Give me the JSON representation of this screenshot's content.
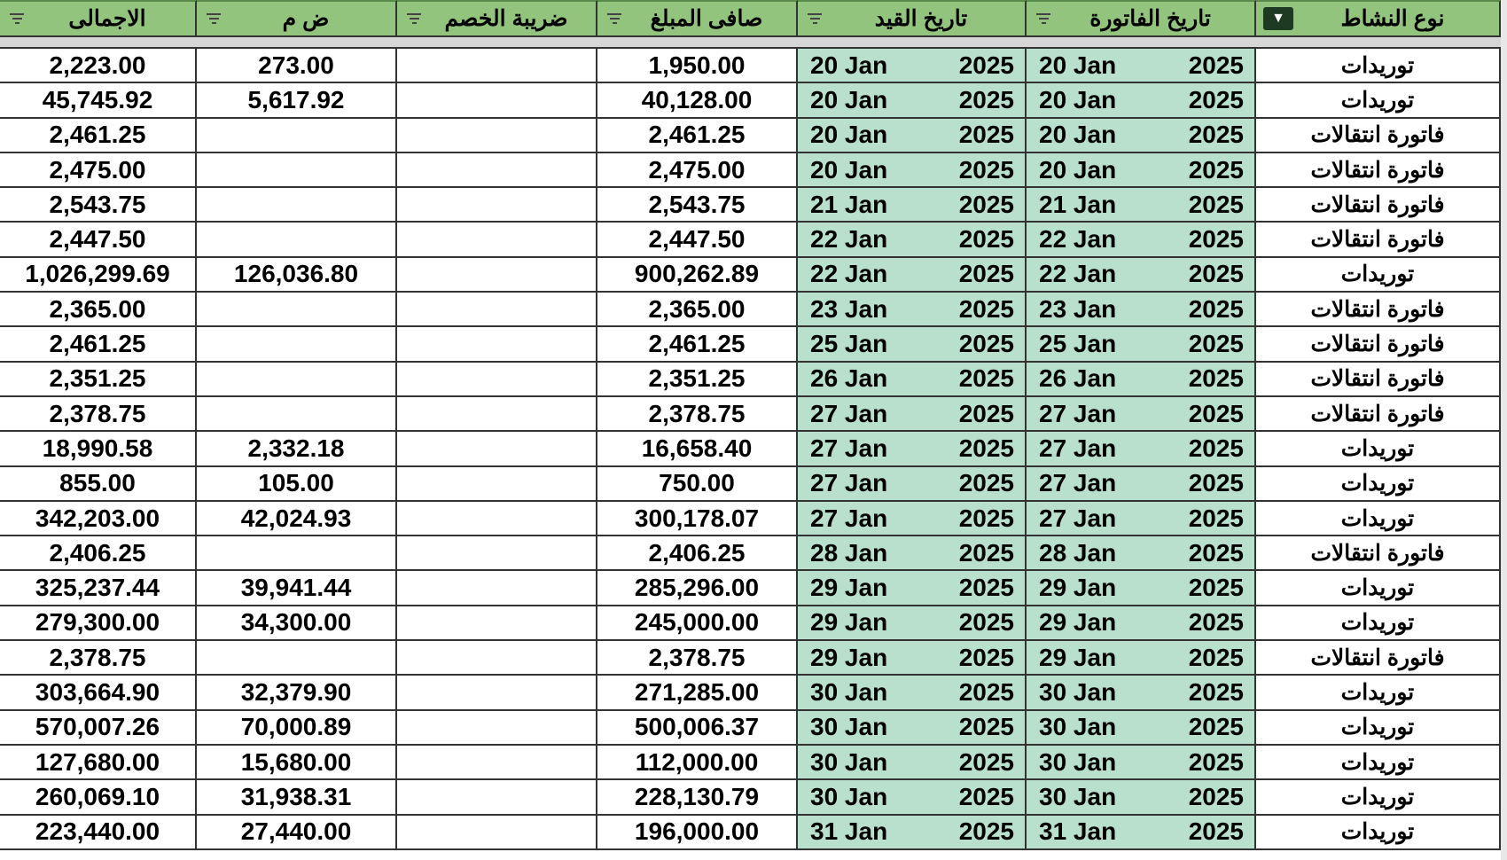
{
  "headers": [
    "الاجمالى",
    "ض م",
    "ضريبة الخصم",
    "صافى المبلغ",
    "تاريخ القيد",
    "تاريخ الفاتورة",
    "نوع النشاط"
  ],
  "colors": {
    "header_bg": "#93c47d",
    "date_bg": "#b8e0cc",
    "active_filter": "#1e3a22"
  },
  "rows": [
    {
      "total": "2,223.00",
      "vat": "273.00",
      "wht": "",
      "net": "1,950.00",
      "post_day": "20 Jan",
      "post_year": "2025",
      "inv_day": "20 Jan",
      "inv_year": "2025",
      "activity": "توريدات"
    },
    {
      "total": "45,745.92",
      "vat": "5,617.92",
      "wht": "",
      "net": "40,128.00",
      "post_day": "20 Jan",
      "post_year": "2025",
      "inv_day": "20 Jan",
      "inv_year": "2025",
      "activity": "توريدات"
    },
    {
      "total": "2,461.25",
      "vat": "",
      "wht": "",
      "net": "2,461.25",
      "post_day": "20 Jan",
      "post_year": "2025",
      "inv_day": "20 Jan",
      "inv_year": "2025",
      "activity": "فاتورة انتقالات"
    },
    {
      "total": "2,475.00",
      "vat": "",
      "wht": "",
      "net": "2,475.00",
      "post_day": "20 Jan",
      "post_year": "2025",
      "inv_day": "20 Jan",
      "inv_year": "2025",
      "activity": "فاتورة انتقالات"
    },
    {
      "total": "2,543.75",
      "vat": "",
      "wht": "",
      "net": "2,543.75",
      "post_day": "21 Jan",
      "post_year": "2025",
      "inv_day": "21 Jan",
      "inv_year": "2025",
      "activity": "فاتورة انتقالات"
    },
    {
      "total": "2,447.50",
      "vat": "",
      "wht": "",
      "net": "2,447.50",
      "post_day": "22 Jan",
      "post_year": "2025",
      "inv_day": "22 Jan",
      "inv_year": "2025",
      "activity": "فاتورة انتقالات"
    },
    {
      "total": "1,026,299.69",
      "vat": "126,036.80",
      "wht": "",
      "net": "900,262.89",
      "post_day": "22 Jan",
      "post_year": "2025",
      "inv_day": "22 Jan",
      "inv_year": "2025",
      "activity": "توريدات"
    },
    {
      "total": "2,365.00",
      "vat": "",
      "wht": "",
      "net": "2,365.00",
      "post_day": "23 Jan",
      "post_year": "2025",
      "inv_day": "23 Jan",
      "inv_year": "2025",
      "activity": "فاتورة انتقالات"
    },
    {
      "total": "2,461.25",
      "vat": "",
      "wht": "",
      "net": "2,461.25",
      "post_day": "25 Jan",
      "post_year": "2025",
      "inv_day": "25 Jan",
      "inv_year": "2025",
      "activity": "فاتورة انتقالات"
    },
    {
      "total": "2,351.25",
      "vat": "",
      "wht": "",
      "net": "2,351.25",
      "post_day": "26 Jan",
      "post_year": "2025",
      "inv_day": "26 Jan",
      "inv_year": "2025",
      "activity": "فاتورة انتقالات"
    },
    {
      "total": "2,378.75",
      "vat": "",
      "wht": "",
      "net": "2,378.75",
      "post_day": "27 Jan",
      "post_year": "2025",
      "inv_day": "27 Jan",
      "inv_year": "2025",
      "activity": "فاتورة انتقالات"
    },
    {
      "total": "18,990.58",
      "vat": "2,332.18",
      "wht": "",
      "net": "16,658.40",
      "post_day": "27 Jan",
      "post_year": "2025",
      "inv_day": "27 Jan",
      "inv_year": "2025",
      "activity": "توريدات"
    },
    {
      "total": "855.00",
      "vat": "105.00",
      "wht": "",
      "net": "750.00",
      "post_day": "27 Jan",
      "post_year": "2025",
      "inv_day": "27 Jan",
      "inv_year": "2025",
      "activity": "توريدات"
    },
    {
      "total": "342,203.00",
      "vat": "42,024.93",
      "wht": "",
      "net": "300,178.07",
      "post_day": "27 Jan",
      "post_year": "2025",
      "inv_day": "27 Jan",
      "inv_year": "2025",
      "activity": "توريدات"
    },
    {
      "total": "2,406.25",
      "vat": "",
      "wht": "",
      "net": "2,406.25",
      "post_day": "28 Jan",
      "post_year": "2025",
      "inv_day": "28 Jan",
      "inv_year": "2025",
      "activity": "فاتورة انتقالات"
    },
    {
      "total": "325,237.44",
      "vat": "39,941.44",
      "wht": "",
      "net": "285,296.00",
      "post_day": "29 Jan",
      "post_year": "2025",
      "inv_day": "29 Jan",
      "inv_year": "2025",
      "activity": "توريدات"
    },
    {
      "total": "279,300.00",
      "vat": "34,300.00",
      "wht": "",
      "net": "245,000.00",
      "post_day": "29 Jan",
      "post_year": "2025",
      "inv_day": "29 Jan",
      "inv_year": "2025",
      "activity": "توريدات"
    },
    {
      "total": "2,378.75",
      "vat": "",
      "wht": "",
      "net": "2,378.75",
      "post_day": "29 Jan",
      "post_year": "2025",
      "inv_day": "29 Jan",
      "inv_year": "2025",
      "activity": "فاتورة انتقالات"
    },
    {
      "total": "303,664.90",
      "vat": "32,379.90",
      "wht": "",
      "net": "271,285.00",
      "post_day": "30 Jan",
      "post_year": "2025",
      "inv_day": "30 Jan",
      "inv_year": "2025",
      "activity": "توريدات"
    },
    {
      "total": "570,007.26",
      "vat": "70,000.89",
      "wht": "",
      "net": "500,006.37",
      "post_day": "30 Jan",
      "post_year": "2025",
      "inv_day": "30 Jan",
      "inv_year": "2025",
      "activity": "توريدات"
    },
    {
      "total": "127,680.00",
      "vat": "15,680.00",
      "wht": "",
      "net": "112,000.00",
      "post_day": "30 Jan",
      "post_year": "2025",
      "inv_day": "30 Jan",
      "inv_year": "2025",
      "activity": "توريدات"
    },
    {
      "total": "260,069.10",
      "vat": "31,938.31",
      "wht": "",
      "net": "228,130.79",
      "post_day": "30 Jan",
      "post_year": "2025",
      "inv_day": "30 Jan",
      "inv_year": "2025",
      "activity": "توريدات"
    },
    {
      "total": "223,440.00",
      "vat": "27,440.00",
      "wht": "",
      "net": "196,000.00",
      "post_day": "31 Jan",
      "post_year": "2025",
      "inv_day": "31 Jan",
      "inv_year": "2025",
      "activity": "توريدات"
    }
  ]
}
